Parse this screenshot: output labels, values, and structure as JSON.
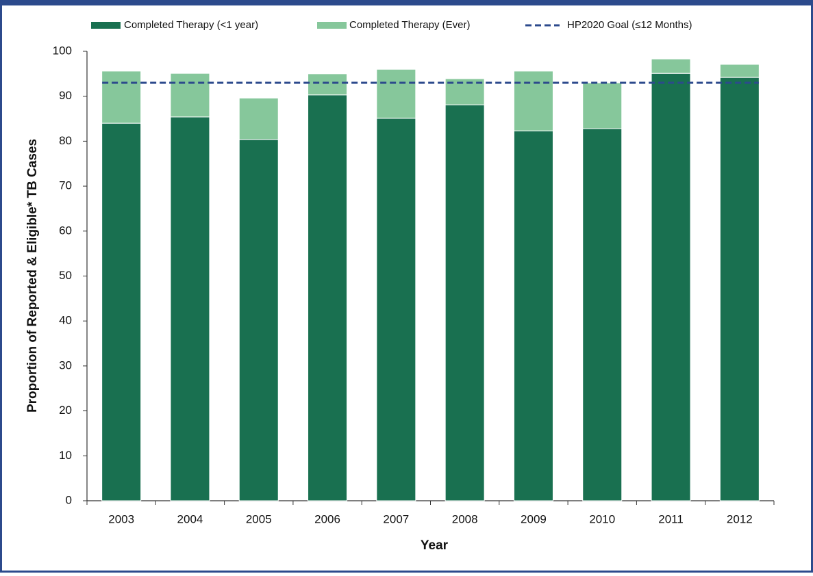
{
  "chart_data": {
    "type": "stacked-bar",
    "categories": [
      "2003",
      "2004",
      "2005",
      "2006",
      "2007",
      "2008",
      "2009",
      "2010",
      "2011",
      "2012"
    ],
    "series": [
      {
        "name": "Completed Therapy (<1 year)",
        "color": "#197050",
        "values": [
          84.0,
          85.4,
          80.4,
          90.3,
          85.1,
          88.1,
          82.3,
          82.8,
          95.1,
          94.2
        ]
      },
      {
        "name": "Completed Therapy (Ever)",
        "color": "#86c79b",
        "values": [
          11.6,
          9.7,
          9.2,
          4.7,
          10.9,
          5.8,
          13.3,
          10.2,
          3.2,
          2.9
        ]
      }
    ],
    "reference_line": {
      "name": "HP2020 Goal (≤12 Months)",
      "value": 93,
      "color": "#2c4a8c"
    },
    "x_label": "Year",
    "y_label": "Proportion of Reported & Eligible* TB Cases",
    "ylim": [
      0,
      100
    ],
    "yticks": [
      0,
      10,
      20,
      30,
      40,
      50,
      60,
      70,
      80,
      90,
      100
    ],
    "grid": false,
    "legend": "top"
  }
}
